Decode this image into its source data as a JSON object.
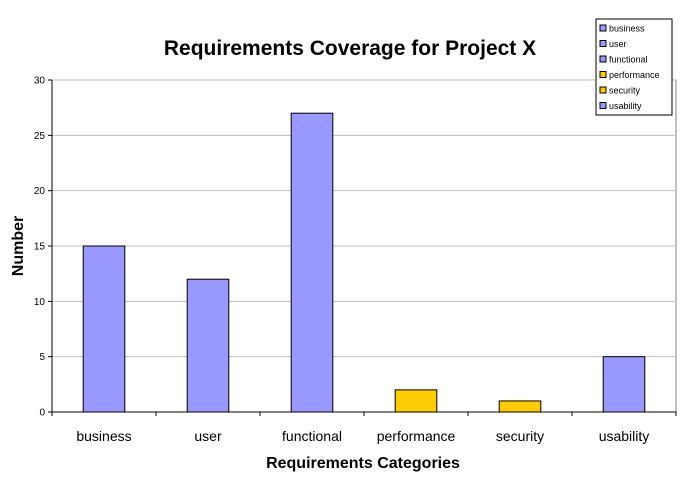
{
  "chart_data": {
    "type": "bar",
    "title": "Requirements Coverage for Project X",
    "xlabel": "Requirements Categories",
    "ylabel": "Number",
    "categories": [
      "business",
      "user",
      "functional",
      "performance",
      "security",
      "usability"
    ],
    "values": [
      15,
      12,
      27,
      2,
      1,
      5
    ],
    "colors": [
      "#9999ff",
      "#9999ff",
      "#9999ff",
      "#ffcc00",
      "#ffcc00",
      "#9999ff"
    ],
    "ylim": [
      0,
      30
    ],
    "yticks": [
      0,
      5,
      10,
      15,
      20,
      25,
      30
    ],
    "grid": true,
    "legend": {
      "placement": "top-right",
      "entries": [
        {
          "label": "business",
          "color": "#9999ff"
        },
        {
          "label": "user",
          "color": "#9999ff"
        },
        {
          "label": "functional",
          "color": "#9999ff"
        },
        {
          "label": "performance",
          "color": "#ffcc00"
        },
        {
          "label": "security",
          "color": "#ffcc00"
        },
        {
          "label": "usability",
          "color": "#9999ff"
        }
      ]
    }
  }
}
